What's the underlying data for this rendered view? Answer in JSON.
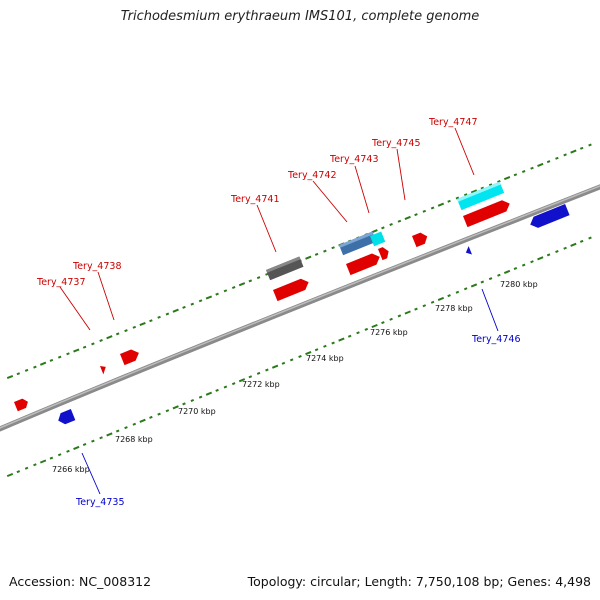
{
  "title": "Trichodesmium erythraeum IMS101, complete genome",
  "footer": {
    "accession": "Accession: NC_008312",
    "summary": "Topology: circular; Length: 7,750,108 bp; Genes: 4,498"
  },
  "colors": {
    "forward_label": "#cc0000",
    "reverse_label": "#0000cc",
    "backbone": "#888888",
    "gc_dots": "#2a7a1a"
  },
  "scale_ticks": [
    "7266 kbp",
    "7268 kbp",
    "7270 kbp",
    "7272 kbp",
    "7274 kbp",
    "7276 kbp",
    "7278 kbp",
    "7280 kbp"
  ],
  "gene_labels": {
    "forward": [
      "Tery_4737",
      "Tery_4738",
      "Tery_4741",
      "Tery_4742",
      "Tery_4743",
      "Tery_4745",
      "Tery_4747"
    ],
    "reverse": [
      "Tery_4735",
      "Tery_4746"
    ]
  }
}
